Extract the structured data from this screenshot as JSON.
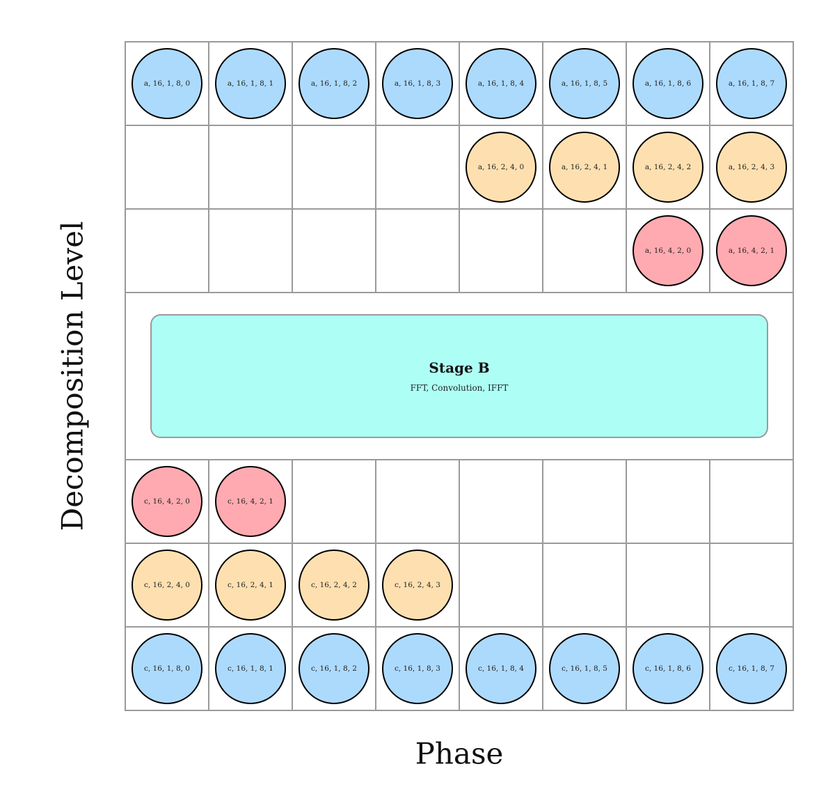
{
  "axes": {
    "x_label": "Phase",
    "y_label": "Decomposition Level"
  },
  "grid": {
    "columns": 8
  },
  "colors": {
    "level_1": "#acdafd",
    "level_2": "#fee0b0",
    "level_4": "#feaab0",
    "stage": "#adfff5"
  },
  "stage": {
    "title": "Stage B",
    "subtitle": "FFT, Convolution, IFFT"
  },
  "rows": [
    {
      "id": "a-level-1",
      "level": 1,
      "offset": 0,
      "nodes": [
        "a, 16, 1, 8, 0",
        "a, 16, 1, 8, 1",
        "a, 16, 1, 8, 2",
        "a, 16, 1, 8, 3",
        "a, 16, 1, 8, 4",
        "a, 16, 1, 8, 5",
        "a, 16, 1, 8, 6",
        "a, 16, 1, 8, 7"
      ]
    },
    {
      "id": "a-level-2",
      "level": 2,
      "offset": 4,
      "nodes": [
        "a, 16, 2, 4, 0",
        "a, 16, 2, 4, 1",
        "a, 16, 2, 4, 2",
        "a, 16, 2, 4, 3"
      ]
    },
    {
      "id": "a-level-4",
      "level": 4,
      "offset": 6,
      "nodes": [
        "a, 16, 4, 2, 0",
        "a, 16, 4, 2, 1"
      ]
    },
    {
      "id": "stage-row",
      "stage": true
    },
    {
      "id": "c-level-4",
      "level": 4,
      "offset": 0,
      "nodes": [
        "c, 16, 4, 2, 0",
        "c, 16, 4, 2, 1"
      ]
    },
    {
      "id": "c-level-2",
      "level": 2,
      "offset": 0,
      "nodes": [
        "c, 16, 2, 4, 0",
        "c, 16, 2, 4, 1",
        "c, 16, 2, 4, 2",
        "c, 16, 2, 4, 3"
      ]
    },
    {
      "id": "c-level-1",
      "level": 1,
      "offset": 0,
      "nodes": [
        "c, 16, 1, 8, 0",
        "c, 16, 1, 8, 1",
        "c, 16, 1, 8, 2",
        "c, 16, 1, 8, 3",
        "c, 16, 1, 8, 4",
        "c, 16, 1, 8, 5",
        "c, 16, 1, 8, 6",
        "c, 16, 1, 8, 7"
      ]
    }
  ]
}
